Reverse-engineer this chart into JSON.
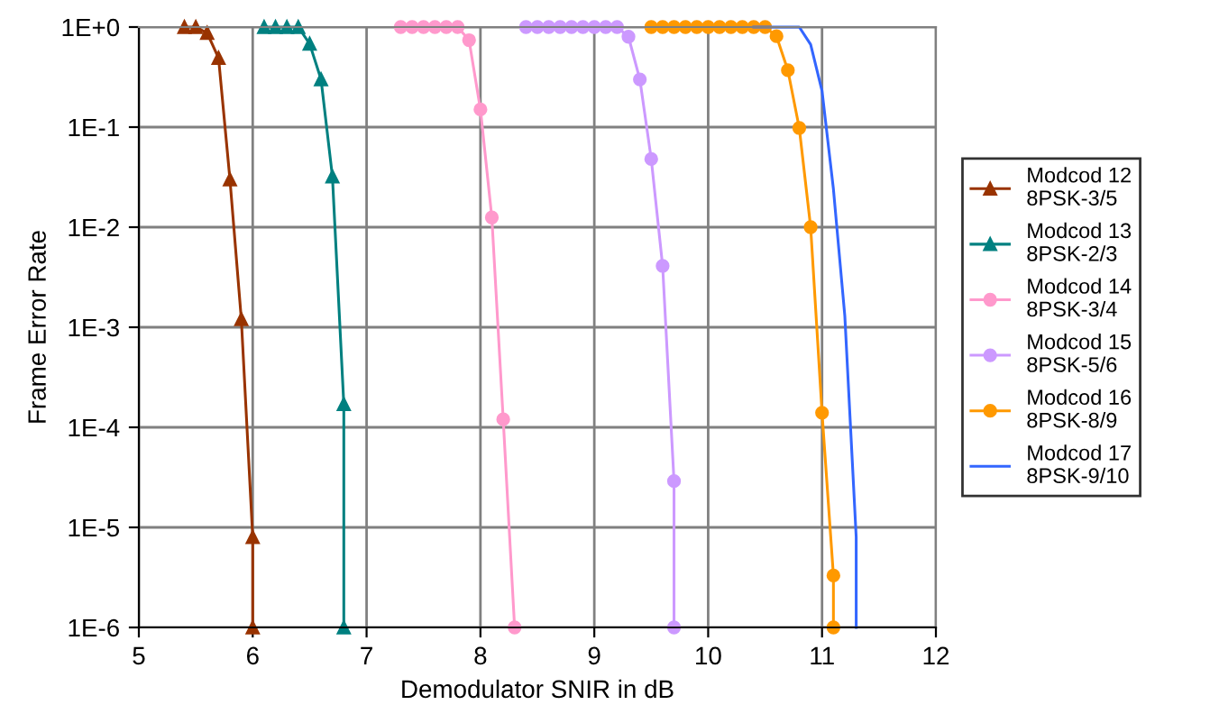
{
  "chart_data": {
    "type": "line",
    "xlabel": "Demodulator SNIR in dB",
    "ylabel": "Frame Error Rate",
    "log": "y",
    "grid": true,
    "legend": "right",
    "xlim": [
      5,
      12
    ],
    "xticks": [
      5,
      6,
      7,
      8,
      9,
      10,
      11,
      12
    ],
    "ylim": [
      1e-06,
      1
    ],
    "yticks": [
      {
        "value": 1,
        "label": "1E+0"
      },
      {
        "value": 0.1,
        "label": "1E-1"
      },
      {
        "value": 0.01,
        "label": "1E-2"
      },
      {
        "value": 0.001,
        "label": "1E-3"
      },
      {
        "value": 0.0001,
        "label": "1E-4"
      },
      {
        "value": 1e-05,
        "label": "1E-5"
      },
      {
        "value": 1e-06,
        "label": "1E-6"
      }
    ],
    "series": [
      {
        "name": "Modcod 12\n8PSK-3/5",
        "color": "#993300",
        "marker": "triangle",
        "x": [
          5.4,
          5.5,
          5.6,
          5.7,
          5.8,
          5.9,
          6.0,
          6.0
        ],
        "values": [
          1,
          1,
          0.87,
          0.49,
          0.03,
          0.0012,
          8e-06,
          1e-06
        ]
      },
      {
        "name": "Modcod 13\n8PSK-2/3",
        "color": "#008080",
        "marker": "triangle",
        "x": [
          6.1,
          6.2,
          6.3,
          6.4,
          6.5,
          6.6,
          6.7,
          6.8,
          6.8
        ],
        "values": [
          1,
          1,
          1,
          1,
          0.68,
          0.3,
          0.032,
          0.00017,
          1e-06
        ]
      },
      {
        "name": "Modcod 14\n8PSK-3/4",
        "color": "#ff99cc",
        "marker": "circle",
        "x": [
          7.3,
          7.4,
          7.5,
          7.6,
          7.7,
          7.8,
          7.9,
          8.0,
          8.1,
          8.2,
          8.3
        ],
        "values": [
          1,
          1,
          1,
          1,
          1,
          1,
          0.74,
          0.15,
          0.0125,
          0.00012,
          1e-06
        ]
      },
      {
        "name": "Modcod 15\n8PSK-5/6",
        "color": "#cc99ff",
        "marker": "circle",
        "x": [
          8.4,
          8.5,
          8.6,
          8.7,
          8.8,
          8.9,
          9.0,
          9.1,
          9.2,
          9.3,
          9.4,
          9.5,
          9.6,
          9.7,
          9.7
        ],
        "values": [
          1,
          1,
          1,
          1,
          1,
          1,
          1,
          1,
          1,
          0.8,
          0.3,
          0.048,
          0.0041,
          2.9e-05,
          1e-06
        ]
      },
      {
        "name": "Modcod 16\n8PSK-8/9",
        "color": "#ff9900",
        "marker": "circle",
        "x": [
          9.5,
          9.6,
          9.7,
          9.8,
          9.9,
          10.0,
          10.1,
          10.2,
          10.3,
          10.4,
          10.5,
          10.6,
          10.7,
          10.8,
          10.9,
          11.0,
          11.1,
          11.1
        ],
        "values": [
          1,
          1,
          1,
          1,
          1,
          1,
          1,
          1,
          1,
          1,
          1,
          0.81,
          0.37,
          0.098,
          0.01,
          0.00014,
          3.3e-06,
          1e-06
        ]
      },
      {
        "name": "Modcod 17\n8PSK-9/10",
        "color": "#3366ff",
        "marker": "none",
        "x": [
          10.4,
          10.5,
          10.6,
          10.7,
          10.8,
          10.9,
          11.0,
          11.1,
          11.2,
          11.3,
          11.3
        ],
        "values": [
          1,
          1,
          1,
          1,
          1,
          0.67,
          0.23,
          0.024,
          0.0013,
          8e-06,
          1e-06
        ]
      }
    ]
  }
}
